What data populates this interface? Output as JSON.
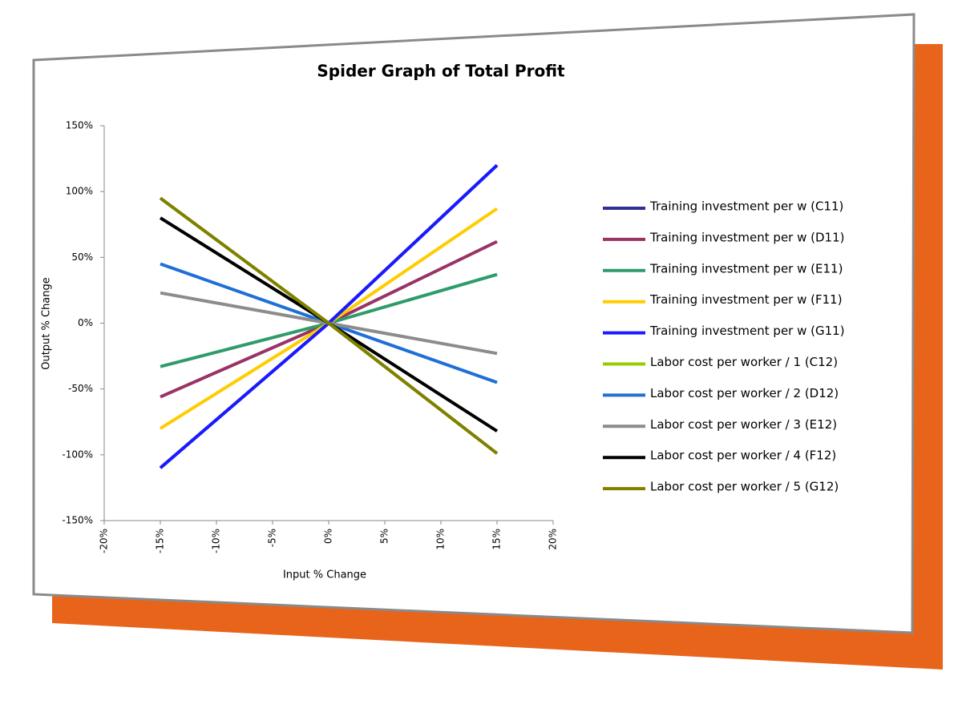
{
  "chart_data": {
    "type": "line",
    "title": "Spider Graph of Total Profit",
    "x_label": "Input % Change",
    "y_label": "Output % Change",
    "x": [
      -15,
      0,
      15
    ],
    "xlim": [
      -20,
      20
    ],
    "xticks": [
      {
        "value": -20,
        "label": "-20%"
      },
      {
        "value": -15,
        "label": "-15%"
      },
      {
        "value": -10,
        "label": "-10%"
      },
      {
        "value": -5,
        "label": "-5%"
      },
      {
        "value": 0,
        "label": "0%"
      },
      {
        "value": 5,
        "label": "5%"
      },
      {
        "value": 10,
        "label": "10%"
      },
      {
        "value": 15,
        "label": "15%"
      },
      {
        "value": 20,
        "label": "20%"
      }
    ],
    "ylim": [
      -150,
      150
    ],
    "yticks": [
      {
        "value": -150,
        "label": "-150%"
      },
      {
        "value": -100,
        "label": "-100%"
      },
      {
        "value": -50,
        "label": "-50%"
      },
      {
        "value": 0,
        "label": "0%"
      },
      {
        "value": 50,
        "label": "50%"
      },
      {
        "value": 100,
        "label": "100%"
      },
      {
        "value": 150,
        "label": "150%"
      }
    ],
    "legend": "right",
    "series": [
      {
        "name": "Training investment per w (C11)",
        "color": "#2e3192",
        "values": [
          -110,
          0,
          120
        ]
      },
      {
        "name": "Training investment per w (D11)",
        "color": "#993366",
        "values": [
          -56,
          0,
          62
        ]
      },
      {
        "name": "Training investment per w (E11)",
        "color": "#2e9c6a",
        "values": [
          -33,
          0,
          37
        ]
      },
      {
        "name": "Training investment per w (F11)",
        "color": "#ffcc00",
        "values": [
          -80,
          0,
          87
        ]
      },
      {
        "name": "Training investment per w (G11)",
        "color": "#1a1aff",
        "values": [
          -110,
          0,
          120
        ]
      },
      {
        "name": "Labor cost per worker / 1 (C12)",
        "color": "#99cc00",
        "values": [
          95,
          0,
          -99
        ]
      },
      {
        "name": "Labor cost per worker / 2 (D12)",
        "color": "#1f6fd6",
        "values": [
          45,
          0,
          -45
        ]
      },
      {
        "name": "Labor cost per worker / 3 (E12)",
        "color": "#8c8c8c",
        "values": [
          23,
          0,
          -23
        ]
      },
      {
        "name": "Labor cost per worker / 4 (F12)",
        "color": "#000000",
        "values": [
          80,
          0,
          -82
        ]
      },
      {
        "name": "Labor cost per worker / 5 (G12)",
        "color": "#808000",
        "values": [
          95,
          0,
          -99
        ]
      }
    ]
  }
}
